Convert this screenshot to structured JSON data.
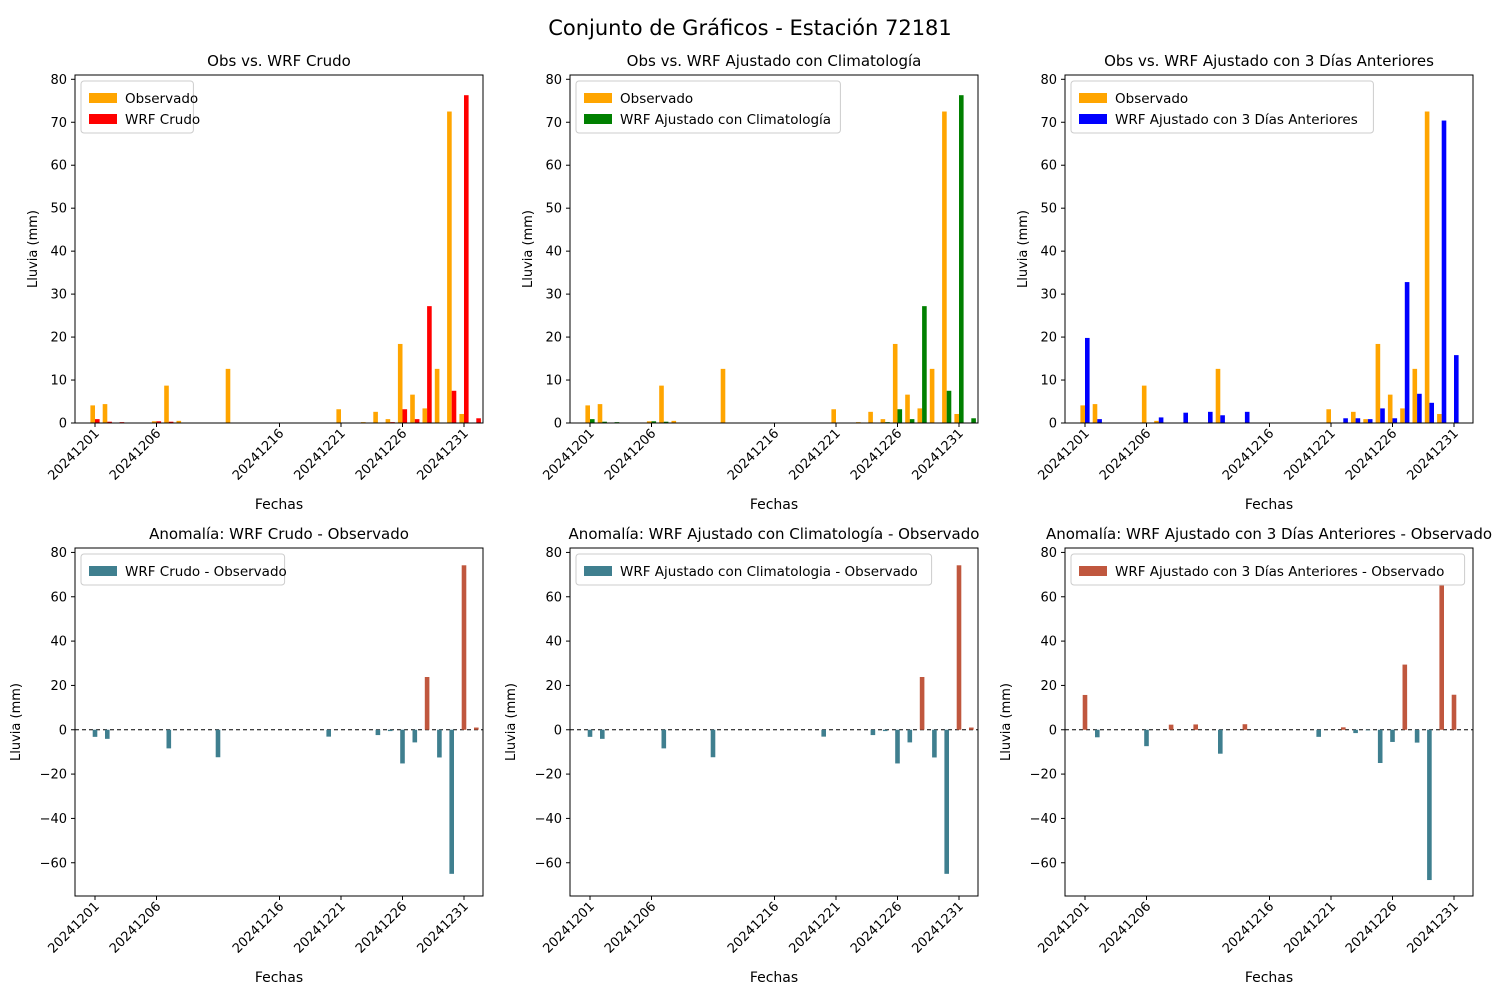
{
  "figure_title": "Conjunto de Gráficos - Estación 72181",
  "colors": {
    "observed": "#FFA500",
    "wrf_raw": "#FF0000",
    "wrf_clim": "#008000",
    "wrf_3d": "#0000FF",
    "anom_positive": "#C0573E",
    "anom_negative": "#3F7F8F"
  },
  "chart_data": [
    {
      "id": "obs-vs-wrf-crudo",
      "type": "bar",
      "title": "Obs vs. WRF Crudo",
      "xlabel": "Fechas",
      "ylabel": "Lluvia (mm)",
      "ylim": [
        0,
        81
      ],
      "yticks": [
        0,
        10,
        20,
        30,
        40,
        50,
        60,
        70,
        80
      ],
      "xticks": [
        "20241201",
        "20241206",
        "20241216",
        "20241221",
        "20241226",
        "20241231"
      ],
      "legend_position": "top-left",
      "series": [
        {
          "name": "Observado",
          "color_key": "observed",
          "points": [
            [
              "2024-12-01",
              4.1
            ],
            [
              "2024-12-02",
              4.4
            ],
            [
              "2024-12-06",
              0.4
            ],
            [
              "2024-12-07",
              8.7
            ],
            [
              "2024-12-08",
              0.5
            ],
            [
              "2024-12-12",
              12.6
            ],
            [
              "2024-12-21",
              3.2
            ],
            [
              "2024-12-23",
              0.2
            ],
            [
              "2024-12-24",
              2.6
            ],
            [
              "2024-12-25",
              0.9
            ],
            [
              "2024-12-26",
              18.4
            ],
            [
              "2024-12-27",
              6.6
            ],
            [
              "2024-12-28",
              3.4
            ],
            [
              "2024-12-29",
              12.6
            ],
            [
              "2024-12-30",
              72.5
            ],
            [
              "2024-12-31",
              2.1
            ]
          ]
        },
        {
          "name": "WRF Crudo",
          "color_key": "wrf_raw",
          "points": [
            [
              "2024-12-01",
              0.9
            ],
            [
              "2024-12-02",
              0.3
            ],
            [
              "2024-12-03",
              0.2
            ],
            [
              "2024-12-06",
              0.4
            ],
            [
              "2024-12-07",
              0.3
            ],
            [
              "2024-12-25",
              0.2
            ],
            [
              "2024-12-26",
              3.2
            ],
            [
              "2024-12-27",
              0.9
            ],
            [
              "2024-12-28",
              27.2
            ],
            [
              "2024-12-29",
              0.1
            ],
            [
              "2024-12-30",
              7.5
            ],
            [
              "2024-12-31",
              76.3
            ],
            [
              "2025-01-01",
              1.1
            ]
          ]
        }
      ]
    },
    {
      "id": "obs-vs-wrf-clim",
      "type": "bar",
      "title": "Obs vs. WRF Ajustado con Climatología",
      "xlabel": "Fechas",
      "ylabel": "Lluvia (mm)",
      "ylim": [
        0,
        81
      ],
      "yticks": [
        0,
        10,
        20,
        30,
        40,
        50,
        60,
        70,
        80
      ],
      "xticks": [
        "20241201",
        "20241206",
        "20241216",
        "20241221",
        "20241226",
        "20241231"
      ],
      "legend_position": "top-left",
      "series": [
        {
          "name": "Observado",
          "color_key": "observed",
          "points": [
            [
              "2024-12-01",
              4.1
            ],
            [
              "2024-12-02",
              4.4
            ],
            [
              "2024-12-06",
              0.4
            ],
            [
              "2024-12-07",
              8.7
            ],
            [
              "2024-12-08",
              0.5
            ],
            [
              "2024-12-12",
              12.6
            ],
            [
              "2024-12-21",
              3.2
            ],
            [
              "2024-12-23",
              0.2
            ],
            [
              "2024-12-24",
              2.6
            ],
            [
              "2024-12-25",
              0.9
            ],
            [
              "2024-12-26",
              18.4
            ],
            [
              "2024-12-27",
              6.6
            ],
            [
              "2024-12-28",
              3.4
            ],
            [
              "2024-12-29",
              12.6
            ],
            [
              "2024-12-30",
              72.5
            ],
            [
              "2024-12-31",
              2.1
            ]
          ]
        },
        {
          "name": "WRF Ajustado con Climatología",
          "color_key": "wrf_clim",
          "points": [
            [
              "2024-12-01",
              0.9
            ],
            [
              "2024-12-02",
              0.3
            ],
            [
              "2024-12-03",
              0.2
            ],
            [
              "2024-12-06",
              0.4
            ],
            [
              "2024-12-07",
              0.3
            ],
            [
              "2024-12-25",
              0.2
            ],
            [
              "2024-12-26",
              3.2
            ],
            [
              "2024-12-27",
              0.9
            ],
            [
              "2024-12-28",
              27.2
            ],
            [
              "2024-12-29",
              0.1
            ],
            [
              "2024-12-30",
              7.5
            ],
            [
              "2024-12-31",
              76.3
            ],
            [
              "2025-01-01",
              1.1
            ]
          ]
        }
      ]
    },
    {
      "id": "obs-vs-wrf-3dias",
      "type": "bar",
      "title": "Obs vs. WRF Ajustado con 3 Días Anteriores",
      "xlabel": "Fechas",
      "ylabel": "Lluvia (mm)",
      "ylim": [
        0,
        81
      ],
      "yticks": [
        0,
        10,
        20,
        30,
        40,
        50,
        60,
        70,
        80
      ],
      "xticks": [
        "20241201",
        "20241206",
        "20241216",
        "20241221",
        "20241226",
        "20241231"
      ],
      "legend_position": "top-left",
      "series": [
        {
          "name": "Observado",
          "color_key": "observed",
          "points": [
            [
              "2024-12-01",
              4.1
            ],
            [
              "2024-12-02",
              4.4
            ],
            [
              "2024-12-06",
              8.7
            ],
            [
              "2024-12-07",
              0.5
            ],
            [
              "2024-12-12",
              12.6
            ],
            [
              "2024-12-21",
              3.2
            ],
            [
              "2024-12-23",
              2.6
            ],
            [
              "2024-12-24",
              0.9
            ],
            [
              "2024-12-25",
              18.4
            ],
            [
              "2024-12-26",
              6.6
            ],
            [
              "2024-12-27",
              3.4
            ],
            [
              "2024-12-28",
              12.6
            ],
            [
              "2024-12-29",
              72.5
            ],
            [
              "2024-12-30",
              2.1
            ]
          ]
        },
        {
          "name": "WRF Ajustado con 3 Días Anteriores",
          "color_key": "wrf_3d",
          "points": [
            [
              "2024-12-01",
              19.8
            ],
            [
              "2024-12-02",
              0.9
            ],
            [
              "2024-12-07",
              1.3
            ],
            [
              "2024-12-09",
              2.4
            ],
            [
              "2024-12-11",
              2.6
            ],
            [
              "2024-12-12",
              1.8
            ],
            [
              "2024-12-14",
              2.6
            ],
            [
              "2024-12-22",
              1.1
            ],
            [
              "2024-12-23",
              1.1
            ],
            [
              "2024-12-24",
              0.9
            ],
            [
              "2024-12-25",
              3.4
            ],
            [
              "2024-12-26",
              1.1
            ],
            [
              "2024-12-27",
              32.8
            ],
            [
              "2024-12-28",
              6.8
            ],
            [
              "2024-12-29",
              4.7
            ],
            [
              "2024-12-30",
              70.4
            ],
            [
              "2024-12-31",
              15.8
            ]
          ]
        }
      ]
    },
    {
      "id": "anom-wrf-crudo",
      "type": "bar",
      "title": "Anomalía: WRF Crudo - Observado",
      "xlabel": "Fechas",
      "ylabel": "Lluvia (mm)",
      "ylim": [
        -75,
        82
      ],
      "yticks": [
        -60,
        -40,
        -20,
        0,
        20,
        40,
        60,
        80
      ],
      "xticks": [
        "20241201",
        "20241206",
        "20241216",
        "20241221",
        "20241226",
        "20241231"
      ],
      "legend_position": "top-left",
      "zero_line": "dashed",
      "series": [
        {
          "name": "WRF Crudo - Observado",
          "color_key": "anom_negative",
          "positive_color_key": "anom_positive",
          "points": [
            [
              "2024-12-01",
              -3.2
            ],
            [
              "2024-12-02",
              -4.1
            ],
            [
              "2024-12-07",
              -8.4
            ],
            [
              "2024-12-11",
              -12.4
            ],
            [
              "2024-12-20",
              -3.1
            ],
            [
              "2024-12-24",
              -2.4
            ],
            [
              "2024-12-25",
              -0.6
            ],
            [
              "2024-12-26",
              -15.2
            ],
            [
              "2024-12-27",
              -5.7
            ],
            [
              "2024-12-28",
              23.8
            ],
            [
              "2024-12-29",
              -12.5
            ],
            [
              "2024-12-30",
              -65.0
            ],
            [
              "2024-12-31",
              74.2
            ],
            [
              "2025-01-01",
              1.0
            ]
          ]
        }
      ]
    },
    {
      "id": "anom-wrf-clim",
      "type": "bar",
      "title": "Anomalía: WRF Ajustado con Climatología - Observado",
      "xlabel": "Fechas",
      "ylabel": "Lluvia (mm)",
      "ylim": [
        -75,
        82
      ],
      "yticks": [
        -60,
        -40,
        -20,
        0,
        20,
        40,
        60,
        80
      ],
      "xticks": [
        "20241201",
        "20241206",
        "20241216",
        "20241221",
        "20241226",
        "20241231"
      ],
      "legend_position": "top-left",
      "zero_line": "dashed",
      "series": [
        {
          "name": "WRF Ajustado con Climatologia - Observado",
          "color_key": "anom_negative",
          "positive_color_key": "anom_positive",
          "points": [
            [
              "2024-12-01",
              -3.2
            ],
            [
              "2024-12-02",
              -4.1
            ],
            [
              "2024-12-07",
              -8.4
            ],
            [
              "2024-12-11",
              -12.4
            ],
            [
              "2024-12-20",
              -3.1
            ],
            [
              "2024-12-24",
              -2.4
            ],
            [
              "2024-12-25",
              -0.6
            ],
            [
              "2024-12-26",
              -15.2
            ],
            [
              "2024-12-27",
              -5.7
            ],
            [
              "2024-12-28",
              23.8
            ],
            [
              "2024-12-29",
              -12.5
            ],
            [
              "2024-12-30",
              -65.0
            ],
            [
              "2024-12-31",
              74.2
            ],
            [
              "2025-01-01",
              1.0
            ]
          ]
        }
      ]
    },
    {
      "id": "anom-wrf-3dias",
      "type": "bar",
      "title": "Anomalía: WRF Ajustado con 3 Días Anteriores - Observado",
      "xlabel": "Fechas",
      "ylabel": "Lluvia (mm)",
      "ylim": [
        -75,
        82
      ],
      "yticks": [
        -60,
        -40,
        -20,
        0,
        20,
        40,
        60,
        80
      ],
      "xticks": [
        "20241201",
        "20241206",
        "20241216",
        "20241221",
        "20241226",
        "20241231"
      ],
      "legend_position": "top-left",
      "zero_line": "dashed",
      "series": [
        {
          "name": "WRF Ajustado con 3 Días Anteriores - Observado",
          "color_key": "anom_positive",
          "positive_color_key": "anom_positive",
          "negative_color_key": "anom_negative",
          "points": [
            [
              "2024-12-01",
              15.7
            ],
            [
              "2024-12-02",
              -3.4
            ],
            [
              "2024-12-06",
              -7.4
            ],
            [
              "2024-12-08",
              2.3
            ],
            [
              "2024-12-10",
              2.4
            ],
            [
              "2024-12-12",
              -10.8
            ],
            [
              "2024-12-14",
              2.5
            ],
            [
              "2024-12-20",
              -3.2
            ],
            [
              "2024-12-22",
              1.1
            ],
            [
              "2024-12-23",
              -1.5
            ],
            [
              "2024-12-24",
              -0.2
            ],
            [
              "2024-12-25",
              -15.0
            ],
            [
              "2024-12-26",
              -5.5
            ],
            [
              "2024-12-27",
              29.4
            ],
            [
              "2024-12-28",
              -5.8
            ],
            [
              "2024-12-29",
              -67.8
            ],
            [
              "2024-12-30",
              68.3
            ],
            [
              "2024-12-31",
              15.8
            ]
          ]
        }
      ]
    }
  ]
}
